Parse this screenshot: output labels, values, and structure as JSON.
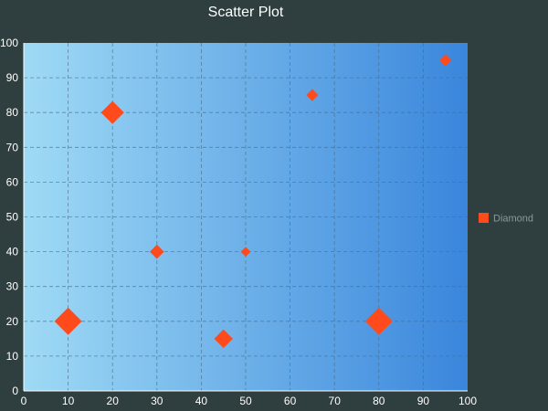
{
  "chart_data": {
    "type": "scatter",
    "title": "Scatter Plot",
    "xlabel": "",
    "ylabel": "",
    "xlim": [
      0,
      100
    ],
    "ylim": [
      0,
      100
    ],
    "x_ticks": [
      0,
      10,
      20,
      30,
      40,
      50,
      60,
      70,
      80,
      90,
      100
    ],
    "y_ticks": [
      0,
      10,
      20,
      30,
      40,
      50,
      60,
      70,
      80,
      90,
      100
    ],
    "grid": true,
    "legend_position": "right",
    "series": [
      {
        "name": "Diamond",
        "marker": "diamond",
        "color": "#ff4a1c",
        "points": [
          {
            "x": 10,
            "y": 20,
            "size": 5
          },
          {
            "x": 20,
            "y": 80,
            "size": 4
          },
          {
            "x": 30,
            "y": 40,
            "size": 2
          },
          {
            "x": 45,
            "y": 15,
            "size": 3
          },
          {
            "x": 50,
            "y": 40,
            "size": 1
          },
          {
            "x": 65,
            "y": 85,
            "size": 1.5
          },
          {
            "x": 80,
            "y": 20,
            "size": 5
          },
          {
            "x": 95,
            "y": 95,
            "size": 1.5
          }
        ]
      }
    ]
  },
  "colors": {
    "background": "#2f3e3e",
    "plot_gradient_start": "#9fdaf5",
    "plot_gradient_end": "#3a86dc"
  }
}
